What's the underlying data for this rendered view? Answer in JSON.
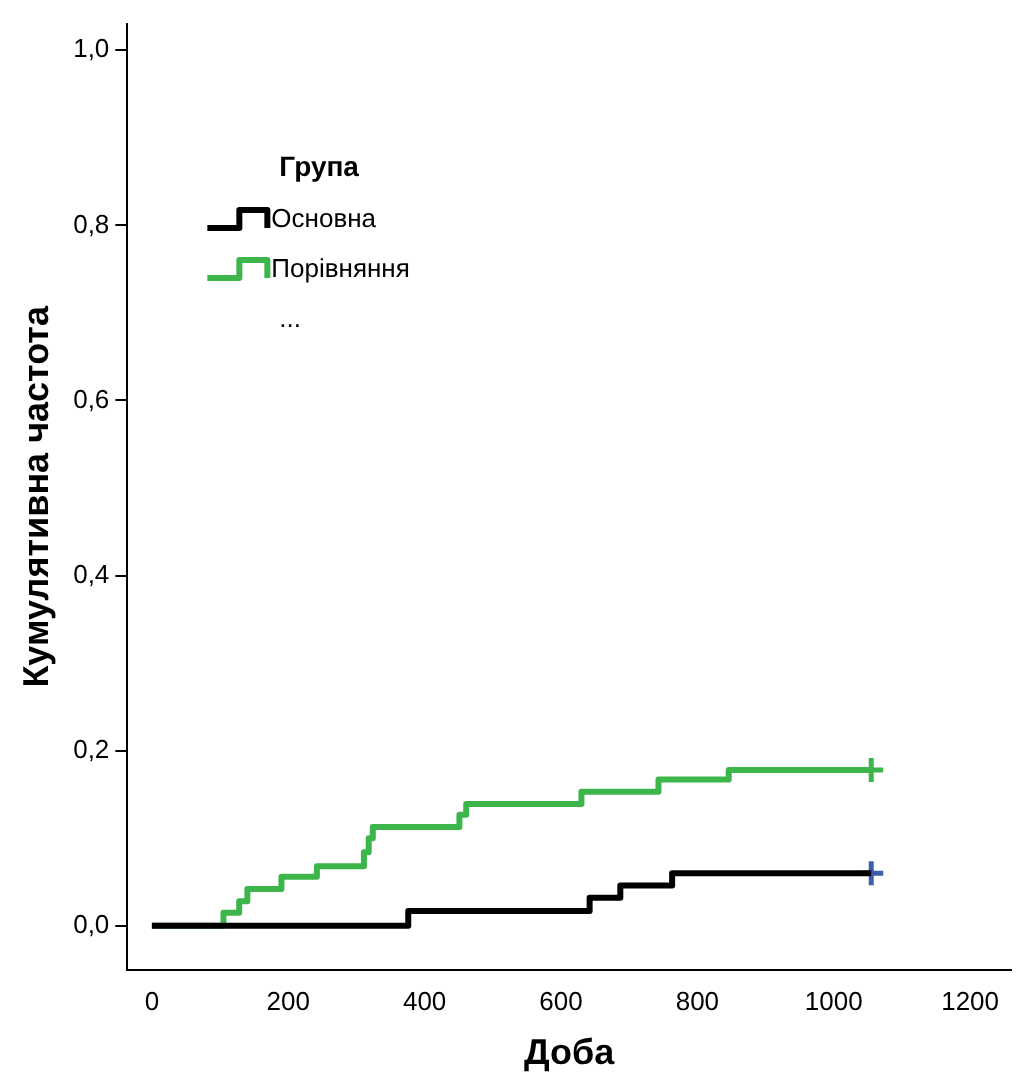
{
  "chart_data": {
    "type": "step",
    "xlabel": "Доба",
    "ylabel": "Кумулятивна частота",
    "legend_title": "Група",
    "xlim": [
      -36,
      1260
    ],
    "xticks": [
      0,
      200,
      400,
      600,
      800,
      1000,
      1200
    ],
    "ylim": [
      -0.05,
      1.03
    ],
    "yticks": [
      {
        "value": 0,
        "label": "0,0"
      },
      {
        "value": 0.2,
        "label": "0,2"
      },
      {
        "value": 0.4,
        "label": "0,4"
      },
      {
        "value": 0.6,
        "label": "0,6"
      },
      {
        "value": 0.8,
        "label": "0,8"
      },
      {
        "value": 1,
        "label": "1,0"
      }
    ],
    "grid": false,
    "legend": "top left",
    "annotations": [
      "..."
    ],
    "series": [
      {
        "name": "Основна",
        "color": "#000000",
        "x": [
          0,
          376,
          642,
          687,
          763,
          1055
        ],
        "values": [
          0,
          0.017,
          0.032,
          0.046,
          0.06,
          0.06
        ]
      },
      {
        "name": "Порівняння",
        "color": "#3cb54a",
        "x": [
          0,
          105,
          128,
          140,
          190,
          242,
          311,
          318,
          324,
          451,
          461,
          630,
          743,
          846,
          1055
        ],
        "values": [
          0,
          0.015,
          0.028,
          0.042,
          0.056,
          0.068,
          0.084,
          0.1,
          0.113,
          0.127,
          0.139,
          0.153,
          0.167,
          0.178,
          0.178
        ]
      },
      {
        "type": "scatter",
        "marker": "cross",
        "color": "#3a5fad",
        "x": [
          1055
        ],
        "values": [
          0.06
        ]
      },
      {
        "type": "scatter",
        "marker": "cross",
        "color": "#3cb54a",
        "x": [
          1055
        ],
        "values": [
          0.178
        ]
      }
    ]
  }
}
